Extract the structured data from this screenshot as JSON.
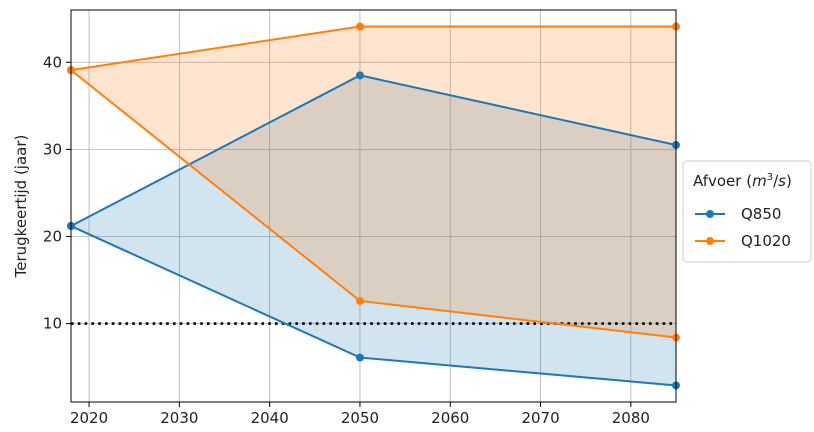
{
  "chart_data": {
    "type": "line",
    "x_ticks": [
      2020,
      2030,
      2040,
      2050,
      2060,
      2070,
      2080
    ],
    "y_ticks": [
      10,
      20,
      30,
      40
    ],
    "xlim": [
      2018,
      2085
    ],
    "ylim": [
      1,
      46
    ],
    "xlabel": "",
    "ylabel": "Terugkeertijd (jaar)",
    "grid": true,
    "reference_line": {
      "y": 10,
      "style": "dotted",
      "color": "#000000"
    },
    "legend": {
      "title_prefix": "Afvoer (",
      "title_unit_base": "m",
      "title_unit_exp": "3",
      "title_unit_rest": "/s)",
      "placement": "right"
    },
    "series": [
      {
        "name": "Q850",
        "color": "#1f77b4",
        "fill": "#1f77b4",
        "upper": {
          "x": [
            2018,
            2050,
            2085
          ],
          "y": [
            21.2,
            38.5,
            30.5
          ]
        },
        "lower": {
          "x": [
            2018,
            2050,
            2085
          ],
          "y": [
            21.2,
            6.1,
            2.9
          ]
        }
      },
      {
        "name": "Q1020",
        "color": "#ff7f0e",
        "fill": "#ff7f0e",
        "upper": {
          "x": [
            2018,
            2050,
            2085
          ],
          "y": [
            39.1,
            44.1,
            44.1
          ]
        },
        "lower": {
          "x": [
            2018,
            2050,
            2085
          ],
          "y": [
            39.1,
            12.6,
            8.4
          ]
        }
      }
    ]
  }
}
